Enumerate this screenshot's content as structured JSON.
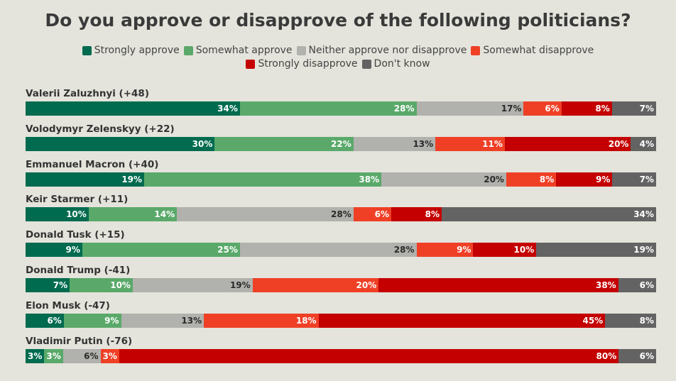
{
  "chart_data": {
    "type": "bar",
    "orientation": "horizontal-stacked-100",
    "title": "Do you approve or disapprove of the following politicians?",
    "legend_position": "top",
    "series": [
      {
        "name": "Strongly approve",
        "color": "#006b4f",
        "label_color": "#ffffff"
      },
      {
        "name": "Somewhat approve",
        "color": "#5aa96a",
        "label_color": "#ffffff"
      },
      {
        "name": "Neither approve nor disapprove",
        "color": "#b1b1ad",
        "label_color": "#2a2a2a"
      },
      {
        "name": "Somewhat disapprove",
        "color": "#ef4026",
        "label_color": "#ffffff"
      },
      {
        "name": "Strongly disapprove",
        "color": "#c40000",
        "label_color": "#ffffff"
      },
      {
        "name": "Don't know",
        "color": "#636363",
        "label_color": "#ffffff"
      }
    ],
    "categories": [
      {
        "name": "Valerii Zaluzhnyi (+48)",
        "values": [
          34,
          28,
          17,
          6,
          8,
          7
        ],
        "labels": [
          "34%",
          "28%",
          "17%",
          "6%",
          "8%",
          "7%"
        ]
      },
      {
        "name": "Volodymyr Zelenskyy (+22)",
        "values": [
          30,
          22,
          13,
          11,
          20,
          4
        ],
        "labels": [
          "30%",
          "22%",
          "13%",
          "11%",
          "20%",
          "4%"
        ]
      },
      {
        "name": "Emmanuel Macron (+40)",
        "values": [
          19,
          38,
          20,
          8,
          9,
          7
        ],
        "labels": [
          "19%",
          "38%",
          "20%",
          "8%",
          "9%",
          "7%"
        ]
      },
      {
        "name": "Keir Starmer (+11)",
        "values": [
          10,
          14,
          28,
          6,
          8,
          34
        ],
        "labels": [
          "10%",
          "14%",
          "28%",
          "6%",
          "8%",
          "34%"
        ]
      },
      {
        "name": "Donald Tusk (+15)",
        "values": [
          9,
          25,
          28,
          9,
          10,
          19
        ],
        "labels": [
          "9%",
          "25%",
          "28%",
          "9%",
          "10%",
          "19%"
        ]
      },
      {
        "name": "Donald Trump (-41)",
        "values": [
          7,
          10,
          19,
          20,
          38,
          6
        ],
        "labels": [
          "7%",
          "10%",
          "19%",
          "20%",
          "38%",
          "6%"
        ]
      },
      {
        "name": "Elon Musk (-47)",
        "values": [
          6,
          9,
          13,
          18,
          45,
          8
        ],
        "labels": [
          "6%",
          "9%",
          "13%",
          "18%",
          "45%",
          "8%"
        ]
      },
      {
        "name": "Vladimir Putin (-76)",
        "values": [
          3,
          3,
          6,
          3,
          80,
          6
        ],
        "labels": [
          "3%",
          "3%",
          "6%",
          "3%",
          "80%",
          "6%"
        ]
      }
    ]
  }
}
